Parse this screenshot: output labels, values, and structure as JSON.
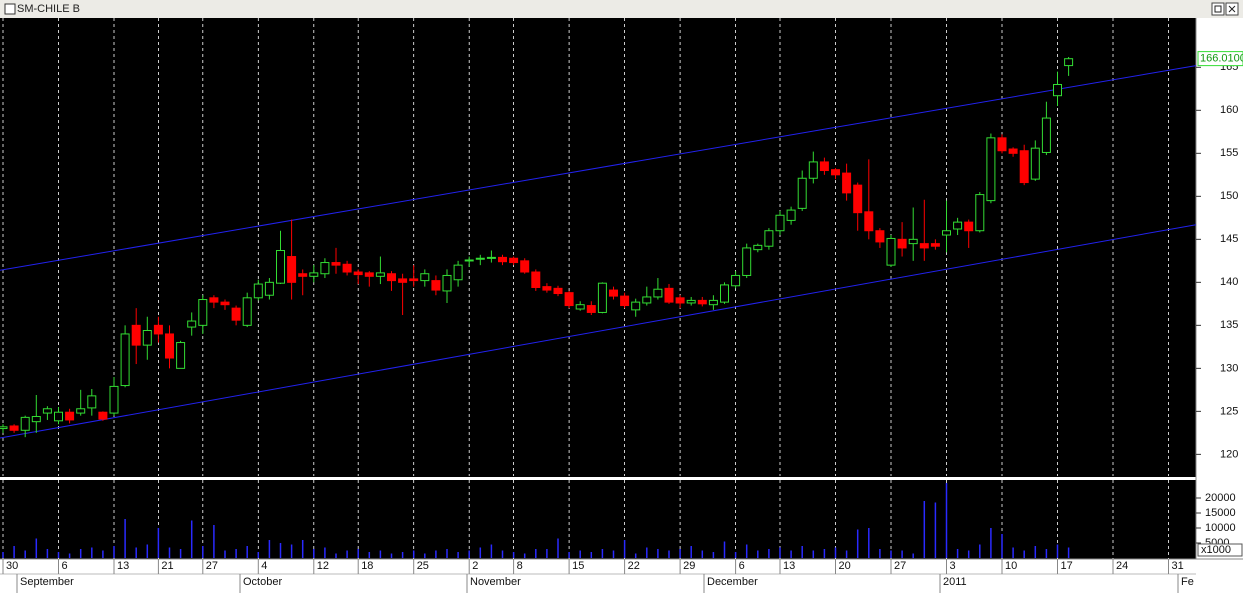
{
  "chart_data": [
    {
      "type": "candlestick",
      "title": "SM-CHILE B",
      "categories": [
        "30",
        null,
        null,
        null,
        null,
        "6",
        null,
        null,
        null,
        null,
        "13",
        null,
        null,
        null,
        "21",
        null,
        null,
        null,
        "27",
        null,
        null,
        null,
        null,
        "4",
        null,
        null,
        null,
        null,
        "12",
        null,
        null,
        null,
        "18",
        null,
        null,
        null,
        null,
        "25",
        null,
        null,
        null,
        null,
        "2",
        null,
        null,
        null,
        "8",
        null,
        null,
        null,
        null,
        "15",
        null,
        null,
        null,
        null,
        "22",
        null,
        null,
        null,
        null,
        "29",
        null,
        null,
        null,
        null,
        "6",
        null,
        null,
        null,
        "13",
        null,
        null,
        null,
        null,
        "20",
        null,
        null,
        null,
        null,
        "27",
        null,
        null,
        null,
        null,
        "3",
        null,
        null,
        null,
        null,
        "10",
        null,
        null,
        null,
        null,
        "17",
        null,
        null,
        null,
        null,
        "24",
        null,
        null,
        null,
        null,
        "31",
        null
      ],
      "months": [
        "September",
        "October",
        "November",
        "December",
        "2011",
        "Fe"
      ],
      "open": [
        123,
        123.3,
        122.8,
        123.8,
        124.8,
        123.9,
        124.9,
        124.8,
        125.4,
        124.9,
        124.8,
        128,
        135,
        132.7,
        135,
        134,
        130,
        134.8,
        135,
        138.2,
        137.7,
        137,
        135,
        138.2,
        138.5,
        139.9,
        143,
        141,
        140.7,
        141,
        142.3,
        142.1,
        141.2,
        141.1,
        140.7,
        141,
        140.4,
        140.4,
        140.2,
        140.2,
        139,
        140.3,
        142.5,
        142.7,
        142.8,
        142.9,
        142.8,
        142.5,
        141.2,
        139.5,
        139.3,
        138.8,
        136.9,
        137.3,
        136.5,
        139.1,
        138.4,
        136.8,
        137.6,
        138.3,
        139.3,
        138.2,
        137.6,
        137.9,
        137.4,
        137.7,
        139.6,
        140.8,
        143.8,
        144.2,
        146,
        147.2,
        148.6,
        152.1,
        154,
        153.1,
        152.7,
        151.3,
        148.2,
        146,
        142,
        145,
        144.5,
        144.5,
        144.5,
        145.5,
        146.2,
        147,
        146,
        149.5,
        156.8,
        155.5,
        155.3,
        152,
        155.1,
        161.7,
        165.2,
        null,
        null,
        null,
        null,
        null,
        null,
        null,
        null,
        null,
        null
      ],
      "high": [
        123.5,
        123.5,
        124.5,
        126.9,
        125.6,
        125.5,
        125.3,
        127.5,
        127.6,
        125,
        129,
        135,
        137,
        136,
        136,
        135,
        133.2,
        136.5,
        138.5,
        138.5,
        138,
        137.3,
        138.8,
        140.3,
        140.5,
        146,
        147.3,
        141.5,
        142,
        142.8,
        144,
        142.5,
        141.5,
        141.3,
        143,
        141.3,
        141,
        142,
        141.5,
        140.8,
        141.5,
        142.5,
        143,
        143.2,
        143.7,
        143.2,
        143,
        142.8,
        141.5,
        139.9,
        139.6,
        139,
        137.8,
        137.8,
        140,
        139.5,
        138.8,
        138.1,
        139.5,
        140.5,
        139.8,
        138.5,
        138.3,
        138.3,
        138.5,
        140,
        141.3,
        144.5,
        144.5,
        146.3,
        148.3,
        148.8,
        153,
        155.2,
        154.5,
        153.3,
        153.8,
        151.6,
        154.3,
        146.3,
        145.5,
        147,
        148.7,
        149.6,
        145,
        149.5,
        147.5,
        147.3,
        150.5,
        157.3,
        157.2,
        155.7,
        156,
        156.5,
        161,
        164.5,
        166.2,
        null,
        null,
        null,
        null,
        null,
        null,
        null,
        null,
        null,
        null
      ],
      "low": [
        122.5,
        122.5,
        122,
        122.5,
        124,
        123.5,
        123.6,
        124.5,
        124.5,
        123.9,
        124.5,
        127.8,
        130.5,
        131,
        133,
        130,
        130,
        133.8,
        134,
        137,
        136.8,
        135,
        134.8,
        137.9,
        138,
        139.8,
        138,
        138.5,
        140,
        140.5,
        141,
        140.8,
        139.8,
        139.5,
        139.8,
        139,
        136.2,
        139.5,
        139.5,
        138.5,
        137.6,
        139.5,
        141.8,
        142,
        142.3,
        142,
        142,
        141,
        139,
        138.8,
        138.4,
        137,
        136.7,
        136.2,
        136.4,
        138,
        137,
        136,
        137.3,
        138,
        137.5,
        137,
        137.3,
        137.2,
        136.8,
        137.5,
        139.3,
        140.5,
        143.5,
        143.8,
        145.5,
        146.7,
        148.3,
        151.5,
        152.5,
        152,
        149.5,
        146,
        145,
        144,
        141.8,
        143,
        142.5,
        142.5,
        143.8,
        143.5,
        145.5,
        144,
        145.8,
        149.2,
        155,
        154.6,
        151.3,
        151.8,
        154.8,
        160.5,
        164,
        null,
        null,
        null,
        null,
        null,
        null,
        null,
        null,
        null,
        null
      ],
      "close": [
        123.2,
        122.8,
        124.3,
        124.4,
        125.3,
        124.9,
        124,
        125.3,
        126.8,
        124.1,
        127.9,
        134,
        132.7,
        134.4,
        134,
        131.2,
        133,
        135.5,
        138,
        137.7,
        137.4,
        135.6,
        138.2,
        139.8,
        140,
        143.7,
        140,
        140.7,
        141.1,
        142.3,
        142,
        141.2,
        140.9,
        140.7,
        141.1,
        140.2,
        140,
        140.2,
        141,
        139.1,
        140.8,
        142,
        142.6,
        142.8,
        142.9,
        142.4,
        142.3,
        141.2,
        139.4,
        139.1,
        138.7,
        137.3,
        137.4,
        136.5,
        139.9,
        138.4,
        137.3,
        137.7,
        138.3,
        139.2,
        137.7,
        137.6,
        137.9,
        137.5,
        137.9,
        139.7,
        140.8,
        144,
        144.3,
        146,
        147.8,
        148.4,
        152.1,
        154,
        153,
        152.5,
        150.4,
        148.1,
        146,
        144.7,
        145.1,
        144,
        145,
        144,
        144.2,
        146,
        147,
        146,
        150.2,
        156.8,
        155.3,
        155,
        151.6,
        155.6,
        159.1,
        163,
        166,
        null,
        null,
        null,
        null,
        null,
        null,
        null,
        null,
        null,
        null
      ],
      "up_color": "#33dd33",
      "down_color": "#ff0000",
      "last_price": {
        "value": 166.01,
        "label": "166.0100"
      },
      "channel_lines": [
        {
          "start": 141.4,
          "end": 165.2
        },
        {
          "start": 121.9,
          "end": 146.7
        }
      ],
      "channel_color": "#2222ee",
      "ylim": [
        117.6,
        170.5
      ],
      "yticks": [
        120,
        125,
        130,
        135,
        140,
        145,
        150,
        155,
        160,
        165
      ],
      "grid": true
    },
    {
      "type": "bar",
      "unit_label": "x1000",
      "color": "#2a2aff",
      "values": [
        2000,
        4000,
        2500,
        6500,
        3000,
        2000,
        1500,
        3000,
        3500,
        2500,
        4000,
        13000,
        3500,
        4500,
        10000,
        3500,
        3000,
        12500,
        4000,
        11000,
        2500,
        3000,
        4000,
        2000,
        6000,
        5000,
        4500,
        6000,
        3000,
        3500,
        1500,
        2500,
        3000,
        2000,
        2500,
        1500,
        2000,
        2500,
        1500,
        2500,
        3000,
        2000,
        2500,
        3500,
        4500,
        2500,
        2000,
        1500,
        3000,
        3000,
        6500,
        2000,
        2500,
        2000,
        3000,
        2500,
        6000,
        1500,
        3500,
        3000,
        2500,
        3000,
        4000,
        2500,
        2000,
        5500,
        2000,
        4500,
        2500,
        3000,
        3500,
        2500,
        4000,
        2500,
        3000,
        3500,
        2500,
        9500,
        10000,
        3000,
        2500,
        2500,
        1500,
        19000,
        18500,
        25000,
        3000,
        2500,
        4500,
        10000,
        8000,
        3500,
        2500,
        4000,
        3000,
        4500,
        3500,
        null,
        null,
        null,
        null,
        null,
        null,
        null,
        null,
        null,
        null
      ],
      "ylim": [
        0,
        26000
      ],
      "yticks": [
        5000,
        10000,
        15000,
        20000
      ]
    }
  ]
}
